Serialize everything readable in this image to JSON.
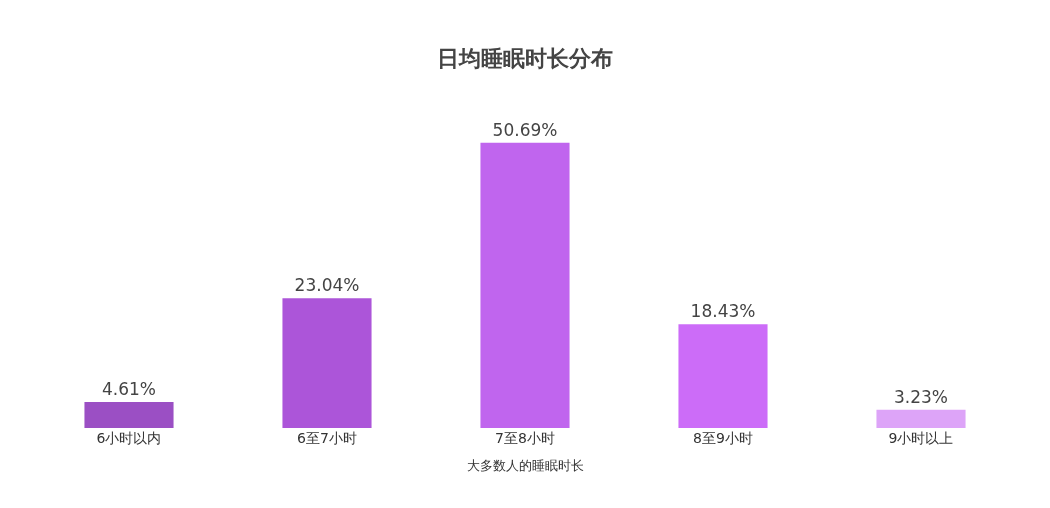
{
  "chart_data": {
    "type": "bar",
    "title": "日均睡眠时长分布",
    "xlabel": "大多数人的睡眠时长",
    "categories": [
      "6小时以内",
      "6至7小时",
      "7至8小时",
      "8至9小时",
      "9小时以上"
    ],
    "values": [
      4.61,
      23.04,
      50.69,
      18.43,
      3.23
    ],
    "colors": [
      "#9b4fc4",
      "#ac55d9",
      "#c065ee",
      "#cc6cf8",
      "#dda4f8"
    ],
    "value_labels": [
      "4.61%",
      "23.04%",
      "50.69%",
      "18.43%",
      "3.23%"
    ]
  }
}
